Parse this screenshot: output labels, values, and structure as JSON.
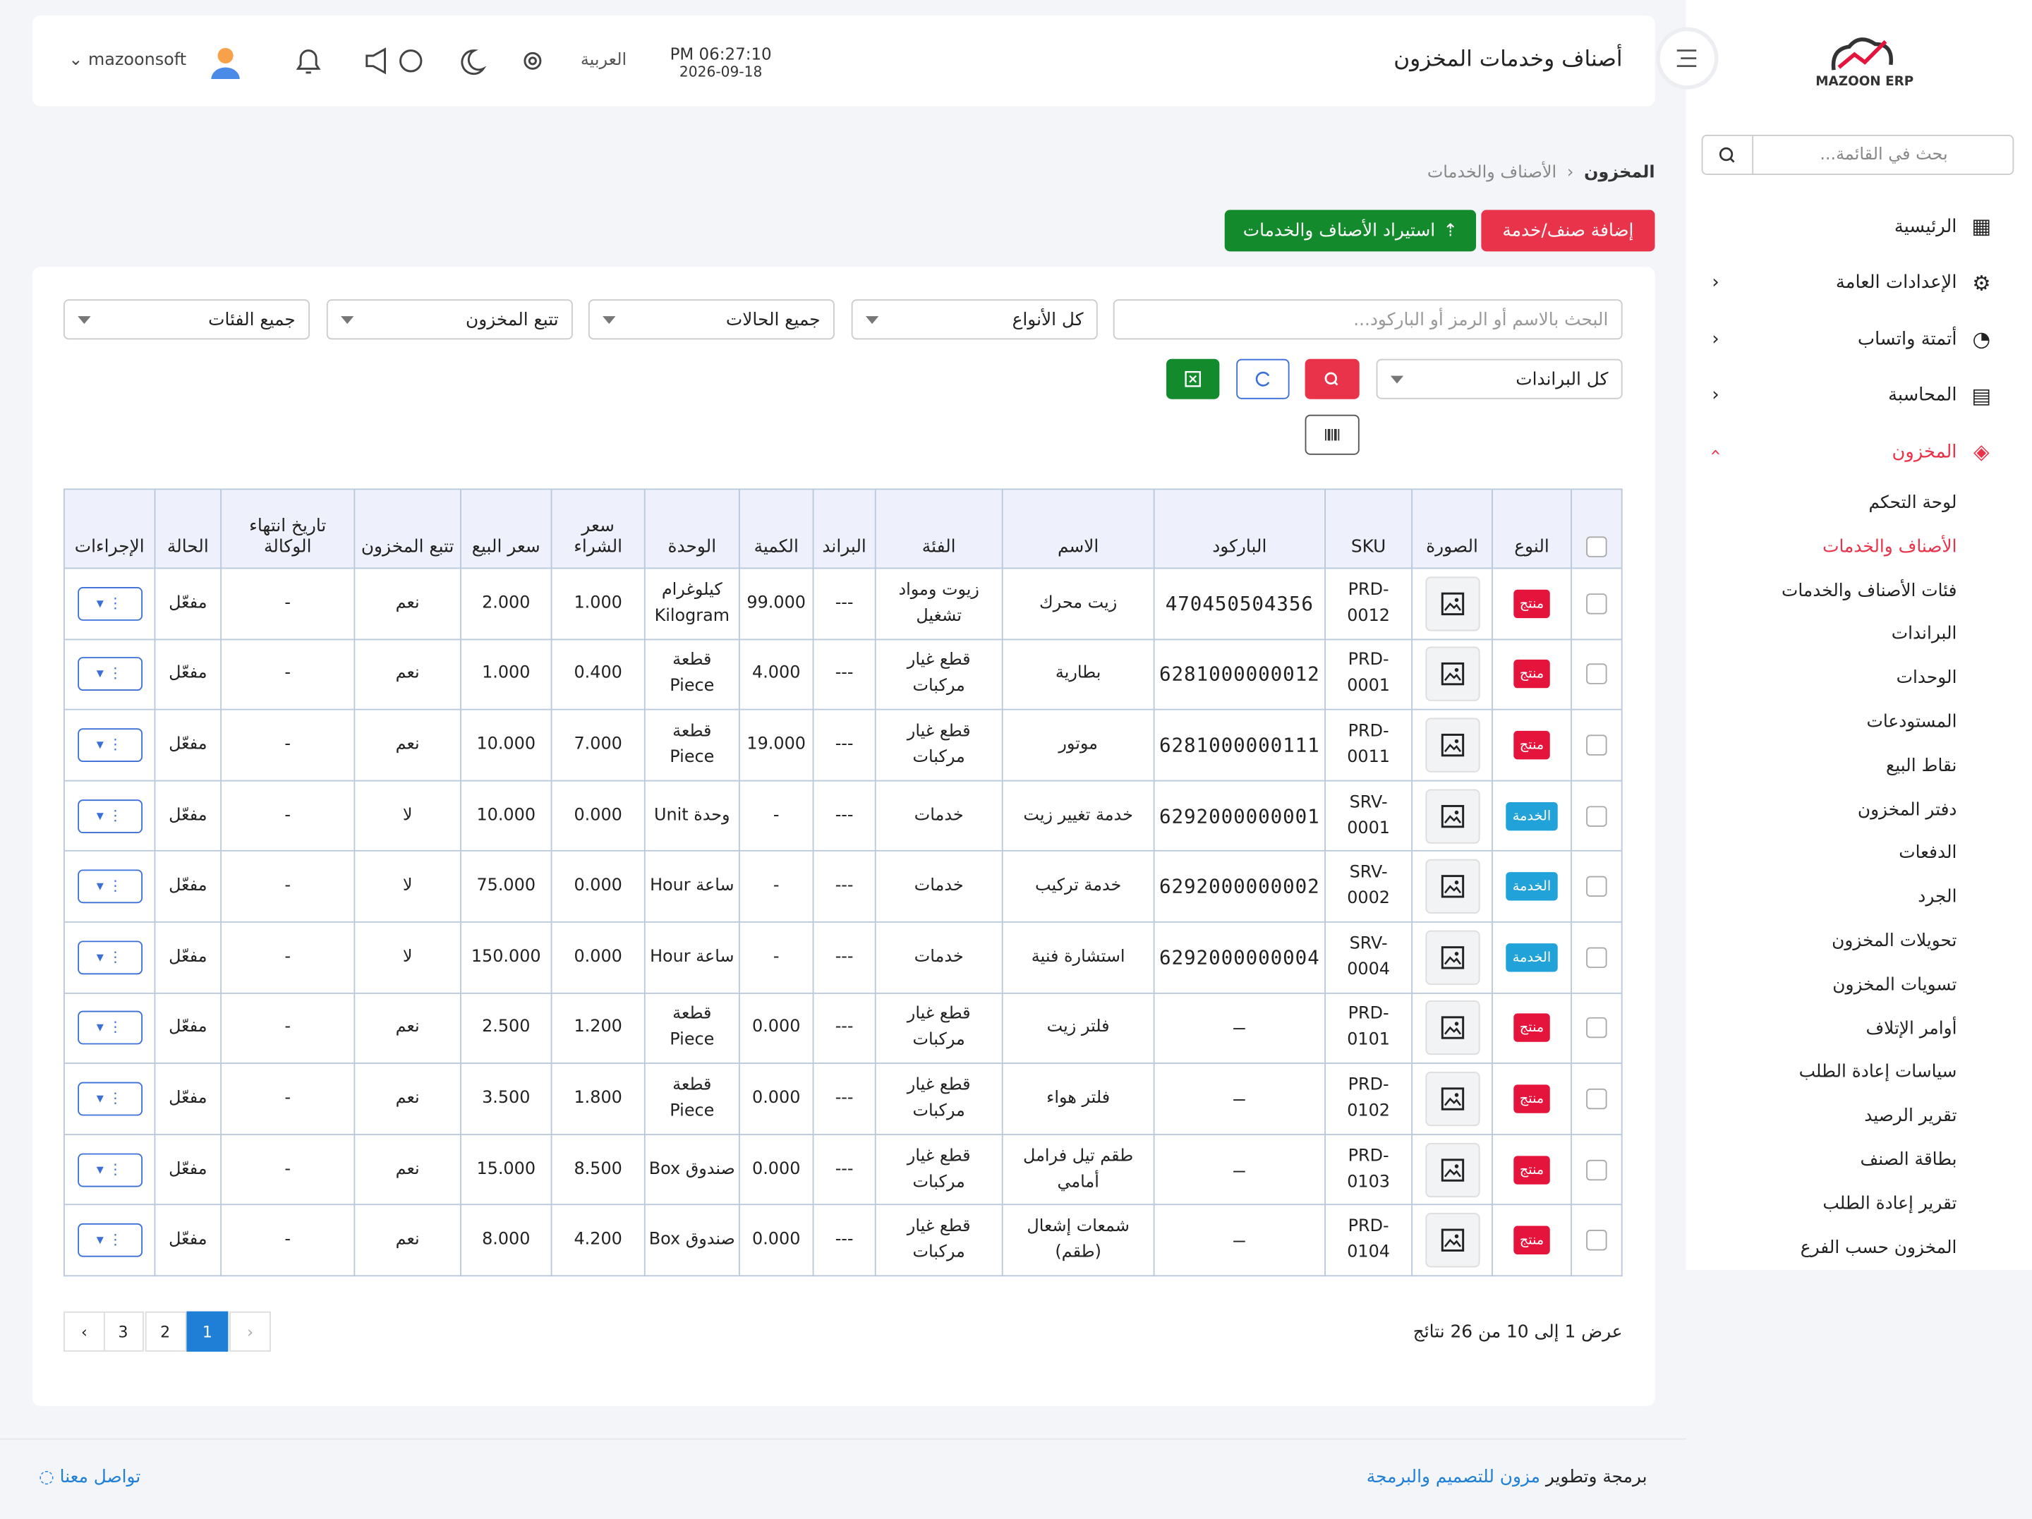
{
  "sidebar": {
    "logo": "MAZOON ERP",
    "search_placeholder": "بحث في القائمة...",
    "menu": [
      "الرئيسية",
      "الإعدادات العامة",
      "أتمتة واتساب",
      "المحاسبة",
      "المخزون"
    ],
    "submenu": [
      "لوحة التحكم",
      "الأصناف والخدمات",
      "فئات الأصناف والخدمات",
      "البراندات",
      "الوحدات",
      "المستودعات",
      "نقاط البيع",
      "دفتر المخزون",
      "الدفعات",
      "الجرد",
      "تحويلات المخزون",
      "تسويات المخزون",
      "أوامر الإتلاف",
      "سياسات إعادة الطلب",
      "تقرير الرصيد",
      "بطاقة الصنف",
      "تقرير إعادة الطلب",
      "المخزون حسب الفرع"
    ]
  },
  "header": {
    "title": "أصناف وخدمات المخزون",
    "time": "PM 06:27:10",
    "date": "2026-09-18",
    "language": "العربية",
    "user": "mazoonsoft"
  },
  "breadcrumb": [
    "المخزون",
    "الأصناف والخدمات"
  ],
  "buttons": {
    "add": "إضافة صنف/خدمة",
    "import": "استيراد الأصناف والخدمات"
  },
  "filters": {
    "search_placeholder": "البحث بالاسم أو الرمز أو الباركود...",
    "types": "كل الأنواع",
    "statuses": "جميع الحالات",
    "tracking": "تتبع المخزون",
    "categories": "جميع الفئات",
    "brands": "كل البراندات"
  },
  "table": {
    "columns": [
      "النوع",
      "الصورة",
      "SKU",
      "الباركود",
      "الاسم",
      "الفئة",
      "البراند",
      "الكمية",
      "الوحدة",
      "سعر الشراء",
      "سعر البيع",
      "تتبع المخزون",
      "تاريخ انتهاء الوكالة",
      "الحالة",
      "الإجراءات"
    ],
    "rows": [
      [
        "منتج",
        "PRD-0012",
        "470450504356",
        "زيت محرك",
        "زيوت ومواد تشغيل",
        "---",
        "99.000",
        "كيلوغرام Kilogram",
        "1.000",
        "2.000",
        "نعم",
        "-",
        "مفعّل"
      ],
      [
        "منتج",
        "PRD-0001",
        "6281000000012",
        "بطارية",
        "قطع غيار مركبات",
        "---",
        "4.000",
        "قطعة Piece",
        "0.400",
        "1.000",
        "نعم",
        "-",
        "مفعّل"
      ],
      [
        "منتج",
        "PRD-0011",
        "6281000000111",
        "موتور",
        "قطع غيار مركبات",
        "---",
        "19.000",
        "قطعة Piece",
        "7.000",
        "10.000",
        "نعم",
        "-",
        "مفعّل"
      ],
      [
        "الخدمة",
        "SRV-0001",
        "6292000000001",
        "خدمة تغيير زيت",
        "خدمات",
        "---",
        "-",
        "وحدة Unit",
        "0.000",
        "10.000",
        "لا",
        "-",
        "مفعّل"
      ],
      [
        "الخدمة",
        "SRV-0002",
        "6292000000002",
        "خدمة تركيب",
        "خدمات",
        "---",
        "-",
        "ساعة Hour",
        "0.000",
        "75.000",
        "لا",
        "-",
        "مفعّل"
      ],
      [
        "الخدمة",
        "SRV-0004",
        "6292000000004",
        "استشارة فنية",
        "خدمات",
        "---",
        "-",
        "ساعة Hour",
        "0.000",
        "150.000",
        "لا",
        "-",
        "مفعّل"
      ],
      [
        "منتج",
        "PRD-0101",
        "—",
        "فلتر زيت",
        "قطع غيار مركبات",
        "---",
        "0.000",
        "قطعة Piece",
        "1.200",
        "2.500",
        "نعم",
        "-",
        "مفعّل"
      ],
      [
        "منتج",
        "PRD-0102",
        "—",
        "فلتر هواء",
        "قطع غيار مركبات",
        "---",
        "0.000",
        "قطعة Piece",
        "1.800",
        "3.500",
        "نعم",
        "-",
        "مفعّل"
      ],
      [
        "منتج",
        "PRD-0103",
        "—",
        "طقم تيل فرامل أمامي",
        "قطع غيار مركبات",
        "---",
        "0.000",
        "صندوق Box",
        "8.500",
        "15.000",
        "نعم",
        "-",
        "مفعّل"
      ],
      [
        "منتج",
        "PRD-0104",
        "—",
        "شمعات إشعال (طقم)",
        "قطع غيار مركبات",
        "---",
        "0.000",
        "صندوق Box",
        "4.200",
        "8.000",
        "نعم",
        "-",
        "مفعّل"
      ]
    ]
  },
  "pagination": {
    "summary": "عرض 1 إلى 10 من 26 نتائج",
    "pages": [
      "1",
      "2",
      "3"
    ]
  },
  "footer": {
    "credit": "برمجة وتطوير",
    "company": "مزون للتصميم والبرمجة",
    "contact": "تواصل معنا"
  }
}
